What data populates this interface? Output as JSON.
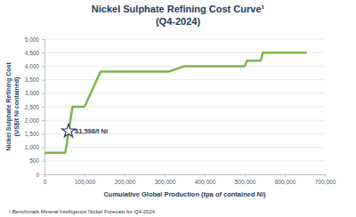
{
  "chart_data": {
    "type": "line",
    "title": "Nickel Sulphate Refining Cost Curve¹",
    "subtitle": "(Q4-2024)",
    "xlabel": "Cumulative Global Production (tpa of contained Ni)",
    "ylabel": "Nickel Sulphate Refining Cost (US$/t Ni contained)",
    "footnote": "¹ Benchmark Mineral Intelligence Nickel Forecast for Q4-2024",
    "x": [
      0,
      5000,
      52000,
      70000,
      100000,
      140000,
      310000,
      350000,
      500000,
      505000,
      540000,
      545000,
      655000
    ],
    "values": [
      780,
      800,
      800,
      2500,
      2500,
      3800,
      3800,
      4000,
      4000,
      4200,
      4200,
      4500,
      4500
    ],
    "color": "#7ab648",
    "xlim": [
      0,
      700000
    ],
    "xticks": [
      0,
      {
        "value": 100000,
        "label": "100,000"
      },
      {
        "value": 200000,
        "label": "200,000"
      },
      {
        "value": 300000,
        "label": "300,000"
      },
      {
        "value": 400000,
        "label": "400,000"
      },
      {
        "value": 500000,
        "label": "500,000"
      },
      {
        "value": 600000,
        "label": "600,000"
      },
      {
        "value": 700000,
        "label": "700,000"
      }
    ],
    "ylim": [
      0,
      5000
    ],
    "yticks": [
      0,
      500,
      {
        "value": 1000,
        "label": "1,000"
      },
      {
        "value": 1500,
        "label": "1,500"
      },
      {
        "value": 2000,
        "label": "2,000"
      },
      {
        "value": 2500,
        "label": "2,500"
      },
      {
        "value": 3000,
        "label": "3,000"
      },
      {
        "value": 3500,
        "label": "3,500"
      },
      {
        "value": 4000,
        "label": "4,000"
      },
      {
        "value": 4500,
        "label": "4,500"
      },
      {
        "value": 5000,
        "label": "5,000"
      }
    ],
    "grid": true,
    "annotations": [
      {
        "x": 60000,
        "y": 1598,
        "label": "$1,598/t Ni",
        "marker": "star"
      }
    ]
  }
}
